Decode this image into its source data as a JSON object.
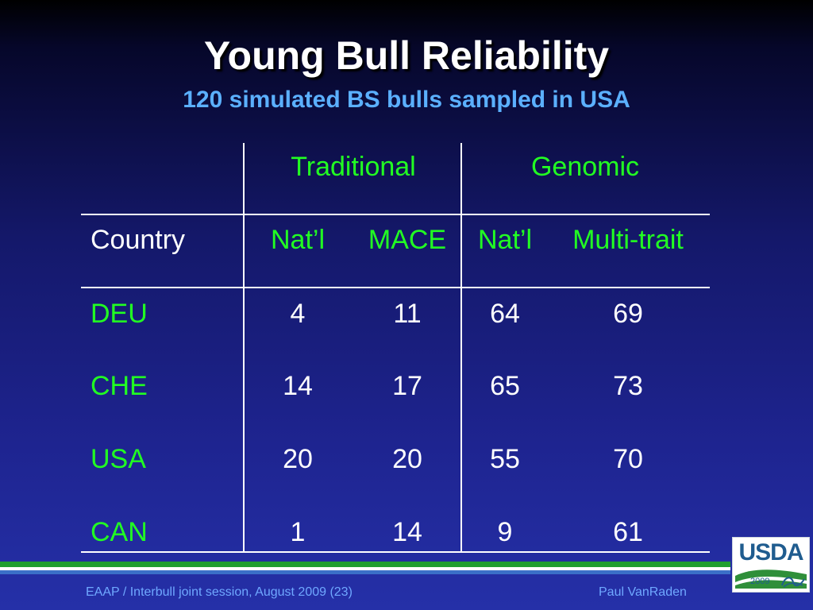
{
  "slide": {
    "title": "Young Bull Reliability",
    "subtitle": "120 simulated BS bulls sampled in USA"
  },
  "table": {
    "group_headers": [
      "Traditional",
      "Genomic"
    ],
    "column_headers": [
      "Country",
      "Nat’l",
      "MACE",
      "Nat’l",
      "Multi-trait"
    ],
    "rows": [
      {
        "country": "DEU",
        "values": [
          "4",
          "11",
          "64",
          "69"
        ]
      },
      {
        "country": "CHE",
        "values": [
          "14",
          "17",
          "65",
          "73"
        ]
      },
      {
        "country": "USA",
        "values": [
          "20",
          "20",
          "55",
          "70"
        ]
      },
      {
        "country": "CAN",
        "values": [
          "1",
          "14",
          "9",
          "61"
        ]
      }
    ]
  },
  "footer": {
    "left": "EAAP / Interbull joint session, August 2009 (23)",
    "right": "Paul VanRaden"
  },
  "logo": {
    "text": "USDA",
    "year": "2009",
    "mark": "ars"
  },
  "colors": {
    "title": "#ffffff",
    "subtitle": "#5bb0ff",
    "header_green": "#22ff22",
    "footer_text": "#6fa8ff",
    "stripe_green": "#1e9e2e",
    "stripe_white": "#ffffff",
    "stripe_blue": "#3b6fc8"
  }
}
